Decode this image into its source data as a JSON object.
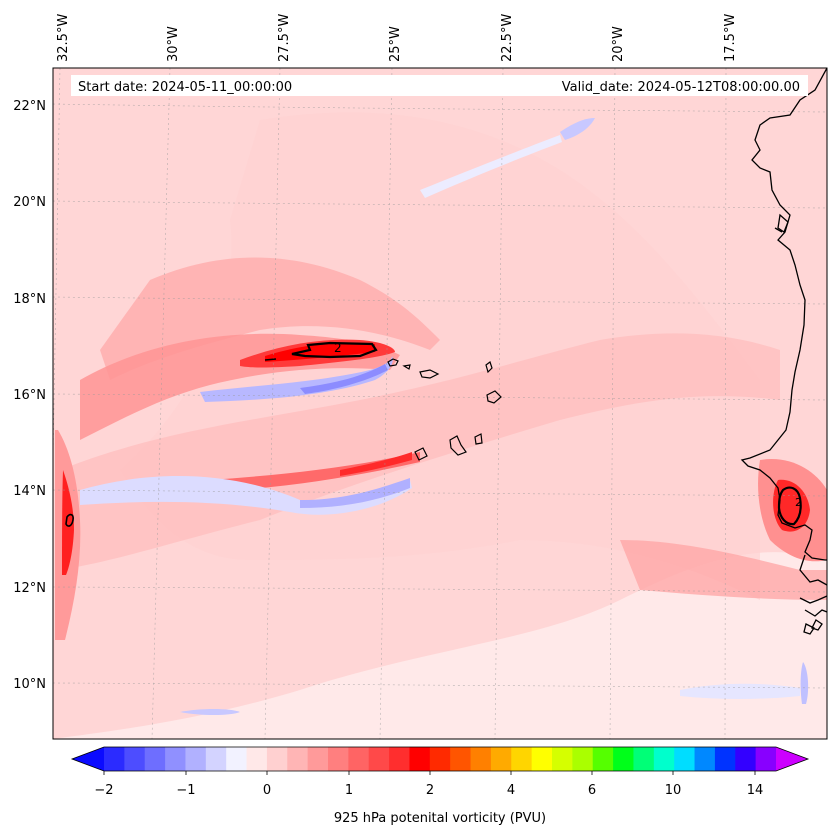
{
  "map": {
    "start_label": "Start date: 2024-05-11_00:00:00",
    "valid_label": "Valid_date: 2024-05-12T08:00:00.00",
    "lon_labels": [
      "32.5°W",
      "30°W",
      "27.5°W",
      "25°W",
      "22.5°W",
      "20°W",
      "17.5°W"
    ],
    "lat_labels": [
      "22°N",
      "20°N",
      "18°N",
      "16°N",
      "14°N",
      "12°N",
      "10°N"
    ],
    "contour_label_1": "2",
    "contour_label_2": "2"
  },
  "colorbar": {
    "title": "925 hPa potenital vorticity (PVU)",
    "tick_labels": [
      "−2",
      "−1",
      "0",
      "1",
      "2",
      "4",
      "6",
      "10",
      "14"
    ],
    "levels": [
      "-2",
      "-1.75",
      "-1.5",
      "-1.25",
      "-1",
      "-0.75",
      "-0.5",
      "-0.25",
      "0",
      "0.25",
      "0.5",
      "0.75",
      "1",
      "1.25",
      "1.5",
      "1.75",
      "2",
      "2.5",
      "3",
      "3.5",
      "4",
      "4.5",
      "5",
      "5.5",
      "6",
      "7",
      "8",
      "9",
      "10",
      "11",
      "12",
      "13",
      "14",
      "16"
    ],
    "colors": [
      "#0b0bff",
      "#2b2bff",
      "#4d4dff",
      "#6e6eff",
      "#9090ff",
      "#b1b1ff",
      "#d3d3ff",
      "#f2f2ff",
      "#ffe8e8",
      "#ffd0d0",
      "#ffb5b5",
      "#ff9a9a",
      "#ff7f7f",
      "#ff6464",
      "#ff4949",
      "#ff2e2e",
      "#ff0000",
      "#ff2a00",
      "#ff5500",
      "#ff8000",
      "#ffaa00",
      "#ffd500",
      "#ffff00",
      "#d5ff00",
      "#aaff00",
      "#55ff00",
      "#00ff1a",
      "#00ff77",
      "#00ffcc",
      "#00ddff",
      "#0088ff",
      "#0033ff",
      "#3300ff",
      "#8800ff",
      "#cc00ff"
    ]
  }
}
